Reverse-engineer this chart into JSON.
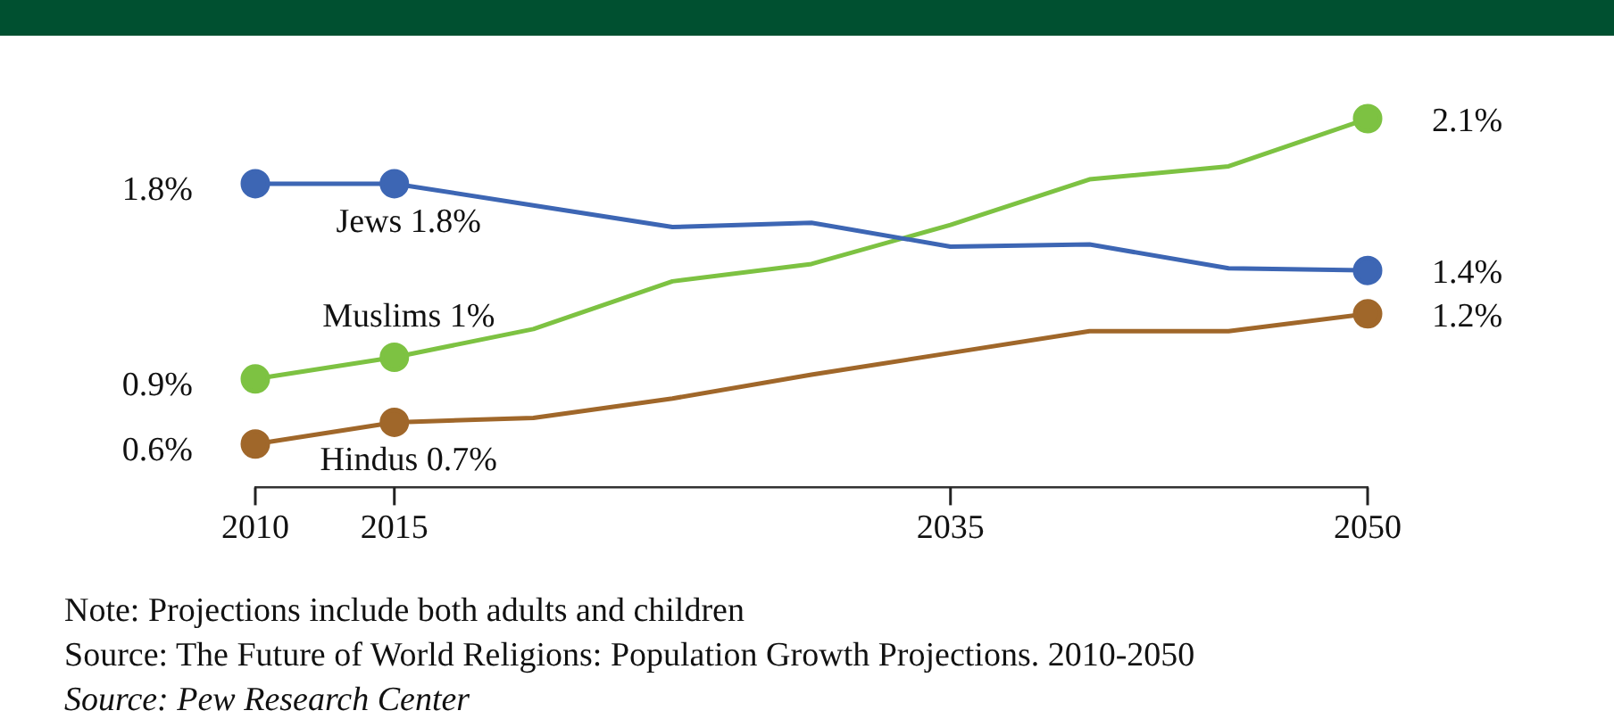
{
  "chart_data": {
    "type": "line",
    "x": [
      2010,
      2015,
      2020,
      2025,
      2030,
      2035,
      2040,
      2045,
      2050
    ],
    "series": [
      {
        "color": "#3d66b4",
        "values": [
          1.8,
          1.8,
          1.7,
          1.6,
          1.62,
          1.51,
          1.52,
          1.41,
          1.4
        ],
        "value_labels": [
          "1.8%",
          "Jews 1.8%",
          null,
          null,
          null,
          null,
          null,
          null,
          "1.4%"
        ]
      },
      {
        "color": "#7dc242",
        "values": [
          0.9,
          1.0,
          1.13,
          1.35,
          1.43,
          1.61,
          1.82,
          1.88,
          2.1
        ],
        "value_labels": [
          "0.9%",
          "Muslims 1%",
          null,
          null,
          null,
          null,
          null,
          null,
          "2.1%"
        ]
      },
      {
        "color": "#a0672a",
        "values": [
          0.6,
          0.7,
          0.72,
          0.81,
          0.92,
          1.02,
          1.12,
          1.12,
          1.2
        ],
        "value_labels": [
          "0.6%",
          "Hindus 0.7%",
          null,
          null,
          null,
          null,
          null,
          null,
          "1.2%"
        ]
      }
    ],
    "xlim": [
      2010,
      2050
    ],
    "xticks": [
      2010,
      2015,
      2035,
      2050
    ],
    "tick_labels": "x",
    "grid": false,
    "legend": false,
    "line_style": "solid",
    "annotations": [
      "Note: Projections include both adults and children",
      "Source: The Future of World Religions: Population Growth Projections. 2010-2050",
      "Source: Pew Research Center"
    ]
  }
}
